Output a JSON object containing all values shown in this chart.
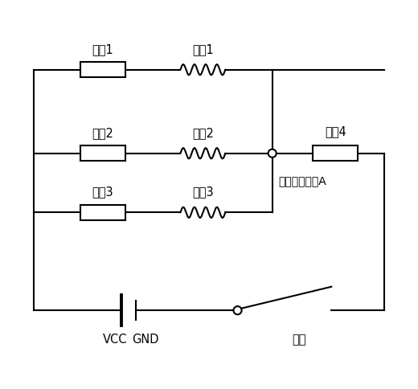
{
  "background_color": "#ffffff",
  "line_color": "#000000",
  "line_width": 1.5,
  "font_size": 10.5,
  "labels": {
    "R1": "电阻1",
    "R2": "电阻2",
    "R3": "电阻3",
    "R4": "电阻4",
    "F1": "铜䑈1",
    "F2": "铜䑈2",
    "F3": "铜䑈3",
    "VCC": "VCC",
    "GND": "GND",
    "SW": "开关",
    "PORT": "电位检测端口A"
  },
  "figsize": [
    5.2,
    4.85
  ],
  "dpi": 100
}
